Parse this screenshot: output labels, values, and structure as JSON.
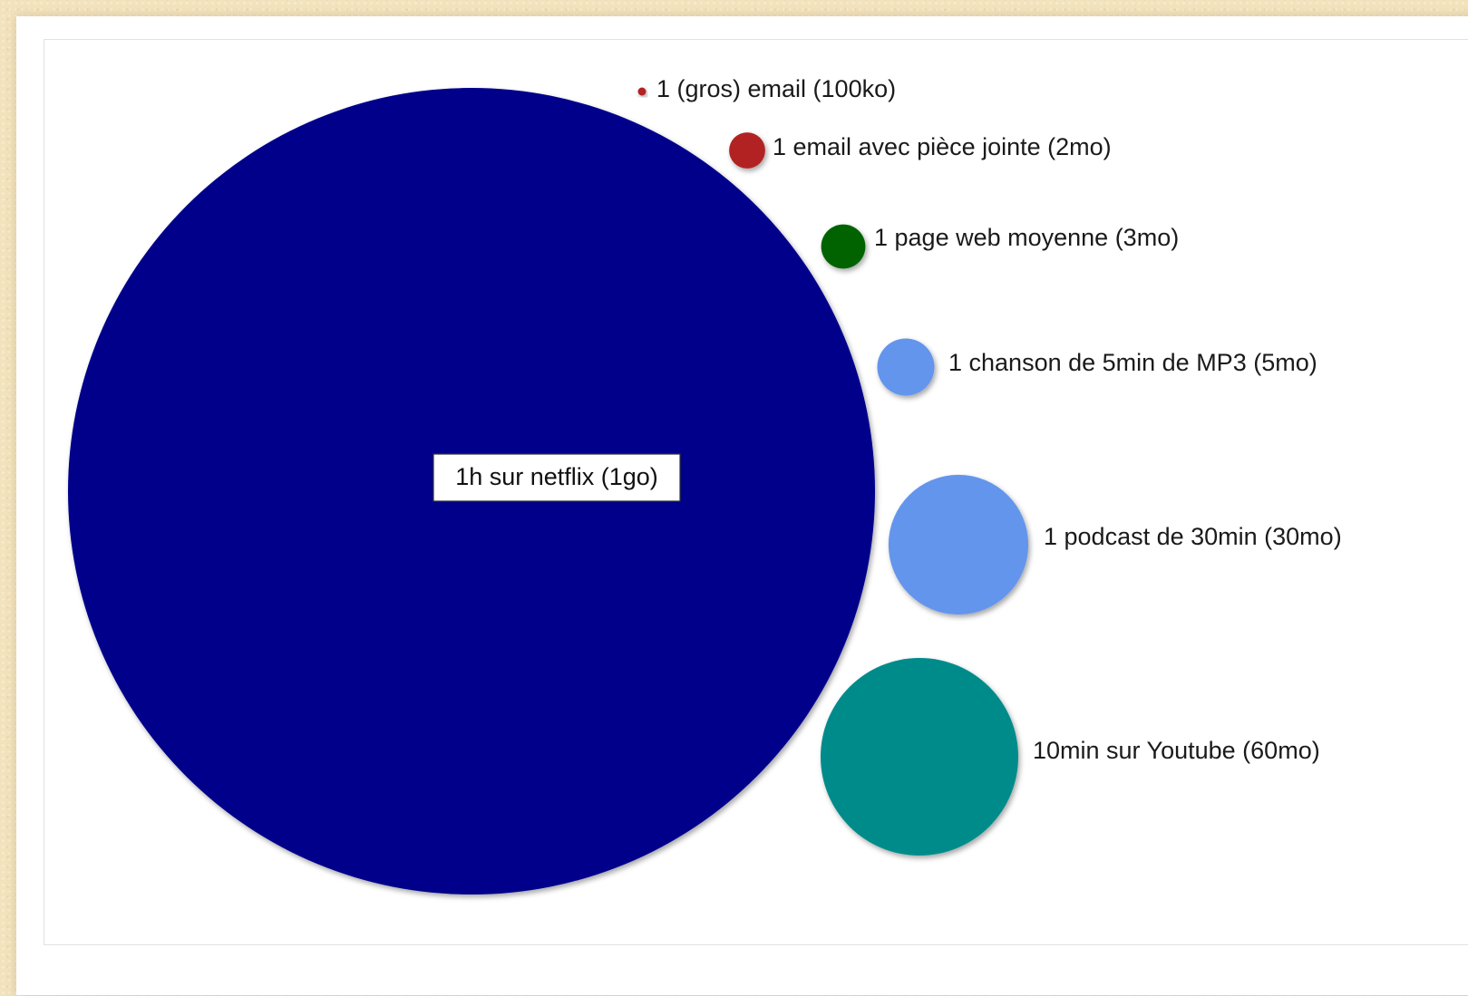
{
  "chart_data": {
    "type": "bubble",
    "title": "",
    "xlabel": "",
    "ylabel": "",
    "grid": false,
    "legend": "none",
    "unit": "mo",
    "items": [
      {
        "label": "1h sur netflix (1go)",
        "value": 1000,
        "color": "#00008b",
        "label_inside": true
      },
      {
        "label": "1 (gros) email (100ko)",
        "value": 0.1,
        "color": "#b22222",
        "label_inside": false
      },
      {
        "label": "1 email avec pièce jointe (2mo)",
        "value": 2,
        "color": "#b22222",
        "label_inside": false
      },
      {
        "label": "1 page web moyenne (3mo)",
        "value": 3,
        "color": "#006400",
        "label_inside": false
      },
      {
        "label": "1 chanson de 5min de MP3 (5mo)",
        "value": 5,
        "color": "#6495ed",
        "label_inside": false
      },
      {
        "label": "1 podcast de 30min (30mo)",
        "value": 30,
        "color": "#6495ed",
        "label_inside": false
      },
      {
        "label": "10min sur Youtube (60mo)",
        "value": 60,
        "color": "#008b8b",
        "label_inside": false
      }
    ]
  }
}
